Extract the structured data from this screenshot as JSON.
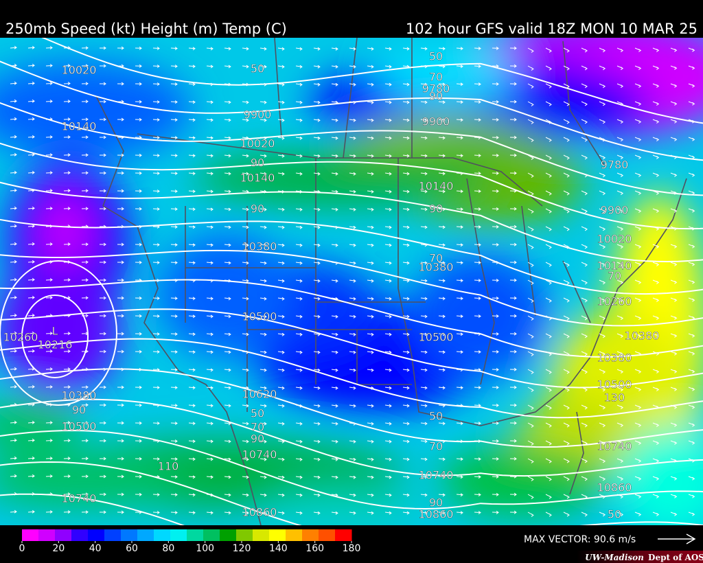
{
  "header": {
    "title": "250mb Speed (kt) Height (m) Temp (C)",
    "valid": "102 hour GFS valid 18Z MON 10 MAR 25"
  },
  "map": {
    "contour_labels": [
      "10020",
      "10140",
      "10260",
      "L",
      "10216",
      "10380",
      "90",
      "10500",
      "10740",
      "50",
      "9900",
      "10020",
      "90",
      "10140",
      "90",
      "10380",
      "10500",
      "10620",
      "50",
      "70",
      "90",
      "10740",
      "10860",
      "110",
      "50",
      "70",
      "9780",
      "90",
      "9900",
      "10140",
      "90",
      "70",
      "10380",
      "10500",
      "50",
      "70",
      "10740",
      "90",
      "10860",
      "9780",
      "9900",
      "10020",
      "10140",
      "70",
      "10260",
      "10380",
      "10380",
      "10500",
      "130",
      "10740",
      "10860",
      "50"
    ]
  },
  "colorbar": {
    "ticks": [
      0,
      20,
      40,
      60,
      80,
      100,
      120,
      140,
      160,
      180
    ],
    "colors": [
      "#ff00ff",
      "#d000ff",
      "#9000ff",
      "#3000ff",
      "#0000ff",
      "#0040ff",
      "#0078ff",
      "#00a8ff",
      "#00d8ff",
      "#00f0f0",
      "#00d8a0",
      "#00c060",
      "#00a000",
      "#80c800",
      "#d8e800",
      "#ffff00",
      "#ffc000",
      "#ff8000"
    ],
    "extra_colors": [
      "#ff5000",
      "#ff0000"
    ]
  },
  "footer": {
    "max_vector": "MAX VECTOR:  90.6 m/s",
    "credit_left": "UW-Madison",
    "credit_right": "Dept of AOS"
  }
}
